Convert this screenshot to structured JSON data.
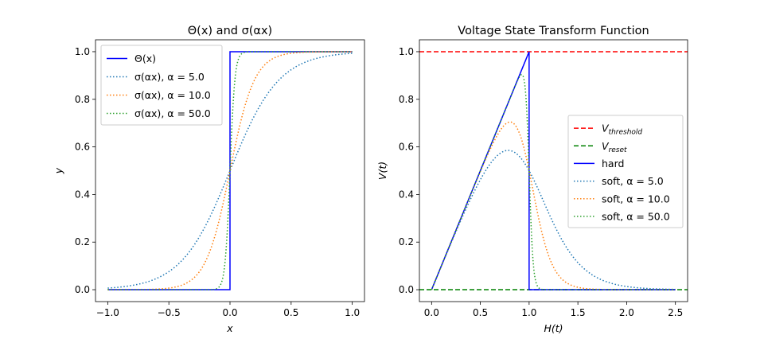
{
  "colors": {
    "blue": "#0000ff",
    "c0": "#1f77b4",
    "c1": "#ff7f0e",
    "c2": "#2ca02c",
    "red": "#ff0000",
    "green": "#008000"
  },
  "chart_data": [
    {
      "type": "line",
      "title": "Θ(x) and σ(αx)",
      "xlabel": "x",
      "ylabel": "y",
      "xlim": [
        -1.1,
        1.1
      ],
      "ylim": [
        -0.05,
        1.05
      ],
      "xticks": [
        -1.0,
        -0.5,
        0.0,
        0.5,
        1.0
      ],
      "xtick_labels": [
        "−1.0",
        "−0.5",
        "0.0",
        "0.5",
        "1.0"
      ],
      "yticks": [
        0.0,
        0.2,
        0.4,
        0.6,
        0.8,
        1.0
      ],
      "ytick_labels": [
        "0.0",
        "0.2",
        "0.4",
        "0.6",
        "0.8",
        "1.0"
      ],
      "legend_position": "upper-left",
      "series": [
        {
          "name": "Θ(x)",
          "kind": "heaviside",
          "style": "solid",
          "color": "#0000ff"
        },
        {
          "name": "σ(αx), α = 5.0",
          "kind": "sigmoid",
          "alpha": 5.0,
          "style": "dotted",
          "color": "#1f77b4"
        },
        {
          "name": "σ(αx), α = 10.0",
          "kind": "sigmoid",
          "alpha": 10.0,
          "style": "dotted",
          "color": "#ff7f0e"
        },
        {
          "name": "σ(αx), α = 50.0",
          "kind": "sigmoid",
          "alpha": 50.0,
          "style": "dotted",
          "color": "#2ca02c"
        }
      ],
      "x_domain": [
        -1.0,
        1.0
      ]
    },
    {
      "type": "line",
      "title": "Voltage State Transform Function",
      "xlabel": "H(t)",
      "ylabel": "V(t)",
      "xlim": [
        -0.125,
        2.625
      ],
      "ylim": [
        -0.05,
        1.05
      ],
      "xticks": [
        0.0,
        0.5,
        1.0,
        1.5,
        2.0,
        2.5
      ],
      "xtick_labels": [
        "0.0",
        "0.5",
        "1.0",
        "1.5",
        "2.0",
        "2.5"
      ],
      "yticks": [
        0.0,
        0.2,
        0.4,
        0.6,
        0.8,
        1.0
      ],
      "ytick_labels": [
        "0.0",
        "0.2",
        "0.4",
        "0.6",
        "0.8",
        "1.0"
      ],
      "legend_position": "center-right",
      "series": [
        {
          "name": "V",
          "sub": "threshold",
          "kind": "hline",
          "y": 1.0,
          "style": "dashed",
          "color": "#ff0000"
        },
        {
          "name": "V",
          "sub": "reset",
          "kind": "hline",
          "y": 0.0,
          "style": "dashed",
          "color": "#008000"
        },
        {
          "name": "hard",
          "kind": "hard",
          "style": "solid",
          "color": "#0000ff"
        },
        {
          "name": "soft, α = 5.0",
          "kind": "soft",
          "alpha": 5.0,
          "style": "dotted",
          "color": "#1f77b4"
        },
        {
          "name": "soft, α = 10.0",
          "kind": "soft",
          "alpha": 10.0,
          "style": "dotted",
          "color": "#ff7f0e"
        },
        {
          "name": "soft, α = 50.0",
          "kind": "soft",
          "alpha": 50.0,
          "style": "dotted",
          "color": "#2ca02c"
        }
      ],
      "x_domain": [
        0.0,
        2.5
      ]
    }
  ]
}
